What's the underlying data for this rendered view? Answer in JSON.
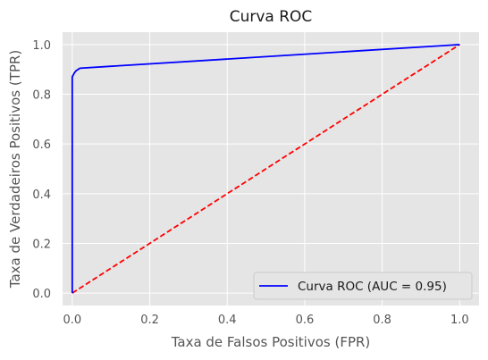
{
  "chart_data": {
    "type": "line",
    "title": "Curva ROC",
    "xlabel": "Taxa de Falsos Positivos (FPR)",
    "ylabel": "Taxa de Verdadeiros Positivos (TPR)",
    "xlim": [
      -0.025,
      1.05
    ],
    "ylim": [
      -0.05,
      1.05
    ],
    "xticks": [
      "0.0",
      "0.2",
      "0.4",
      "0.6",
      "0.8",
      "1.0"
    ],
    "yticks": [
      "0.0",
      "0.2",
      "0.4",
      "0.6",
      "0.8",
      "1.0"
    ],
    "grid": true,
    "legend_position": "lower-right",
    "series": [
      {
        "name": "Curva ROC (AUC = 0.95)",
        "color": "#0000ff",
        "style": "solid",
        "x": [
          0.0,
          0.0,
          0.0,
          0.0,
          0.005,
          0.01,
          0.02,
          1.0
        ],
        "y": [
          0.0,
          0.75,
          0.85,
          0.87,
          0.885,
          0.895,
          0.905,
          1.0
        ]
      },
      {
        "name": "",
        "color": "#ff0000",
        "style": "dashed",
        "x": [
          0.0,
          1.0
        ],
        "y": [
          0.0,
          1.0
        ]
      }
    ]
  }
}
